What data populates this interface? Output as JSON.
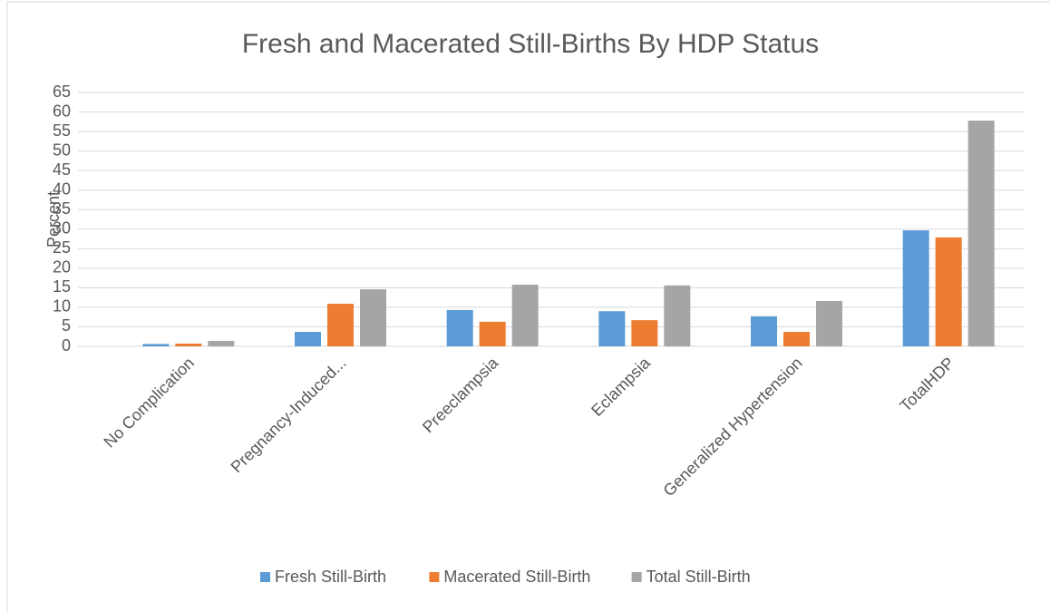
{
  "chart_data": {
    "type": "bar",
    "title": "Fresh and Macerated Still-Births By HDP Status",
    "y_label": "Percent",
    "categories": [
      "No Complication",
      "Pregnancy-Induced...",
      "Preeclampsia",
      "Eclampsia",
      "Generalized Hypertension",
      "TotalHDP"
    ],
    "series": [
      {
        "name": "Fresh Still-Birth",
        "color": "#5b9bd5",
        "values": [
          0.6,
          3.7,
          9.3,
          9.0,
          7.7,
          29.7
        ]
      },
      {
        "name": "Macerated Still-Birth",
        "color": "#ed7d31",
        "values": [
          0.7,
          10.9,
          6.3,
          6.7,
          3.7,
          27.9
        ]
      },
      {
        "name": "Total Still-Birth",
        "color": "#a5a5a5",
        "values": [
          1.4,
          14.6,
          15.8,
          15.6,
          11.6,
          57.8
        ]
      }
    ],
    "ylim": [
      0,
      65
    ],
    "yticks": [
      0,
      5,
      10,
      15,
      20,
      25,
      30,
      35,
      40,
      45,
      50,
      55,
      60,
      65
    ],
    "grid": true,
    "legend": "bottom"
  }
}
